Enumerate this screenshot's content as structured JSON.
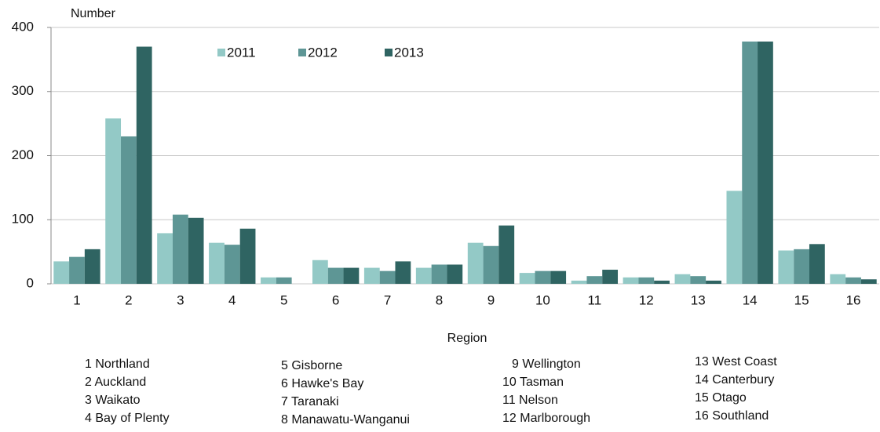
{
  "chart_data": {
    "type": "bar",
    "y_label": "Number",
    "x_label": "Region",
    "categories": [
      "1",
      "2",
      "3",
      "4",
      "5",
      "6",
      "7",
      "8",
      "9",
      "10",
      "11",
      "12",
      "13",
      "14",
      "15",
      "16"
    ],
    "series": [
      {
        "name": "2011",
        "color": "#93c9c6",
        "values": [
          35,
          258,
          79,
          64,
          10,
          37,
          25,
          25,
          64,
          17,
          5,
          10,
          15,
          145,
          52,
          15
        ]
      },
      {
        "name": "2012",
        "color": "#5e9695",
        "values": [
          42,
          230,
          108,
          61,
          10,
          25,
          20,
          30,
          59,
          20,
          12,
          10,
          12,
          378,
          54,
          10
        ]
      },
      {
        "name": "2013",
        "color": "#2f6462",
        "values": [
          54,
          370,
          103,
          86,
          0,
          25,
          35,
          30,
          91,
          20,
          22,
          5,
          5,
          378,
          62,
          7
        ]
      }
    ],
    "ylim": [
      0,
      400
    ],
    "yticks": [
      0,
      100,
      200,
      300,
      400
    ],
    "grid": true,
    "region_key": [
      "1 Northland",
      "2 Auckland",
      "3 Waikato",
      "4 Bay of Plenty",
      "5 Gisborne",
      "6 Hawke's Bay",
      "7 Taranaki",
      "8 Manawatu-Wanganui",
      "9 Wellington",
      "10 Tasman",
      "11 Nelson",
      "12 Marlborough",
      "13 West Coast",
      "14 Canterbury",
      "15 Otago",
      "16 Southland"
    ]
  }
}
